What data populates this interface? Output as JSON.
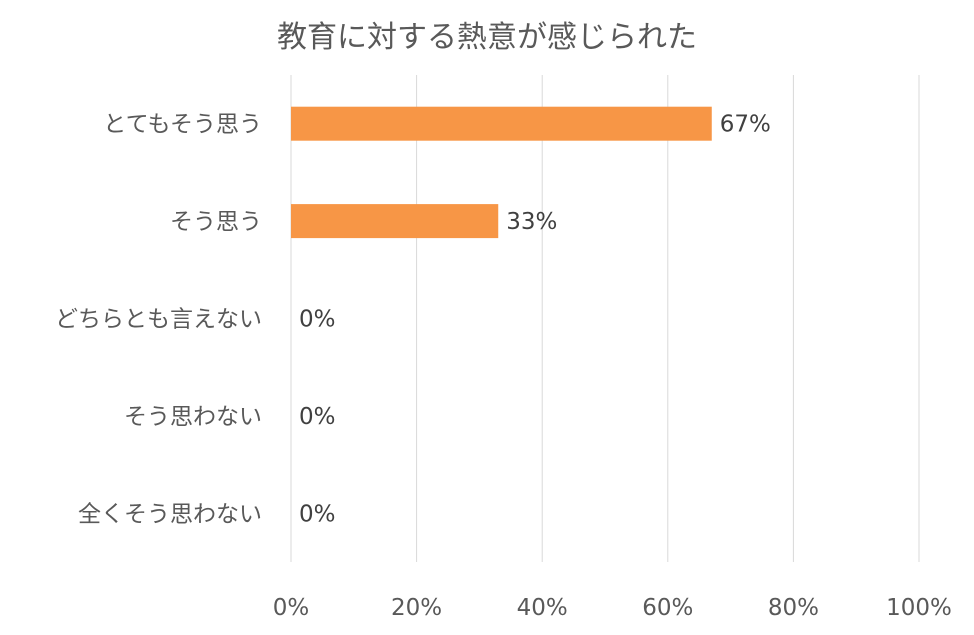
{
  "chart_data": {
    "type": "bar",
    "orientation": "horizontal",
    "title": "教育に対する熱意が感じられた",
    "categories": [
      "とてもそう思う",
      "そう思う",
      "どちらとも言えない",
      "そう思わない",
      "全くそう思わない"
    ],
    "values": [
      67,
      33,
      0,
      0,
      0
    ],
    "data_labels": [
      "67%",
      "33%",
      "0%",
      "0%",
      "0%"
    ],
    "xlim": [
      0,
      100
    ],
    "xticks": [
      0,
      20,
      40,
      60,
      80,
      100
    ],
    "xtick_labels": [
      "0%",
      "20%",
      "40%",
      "60%",
      "80%",
      "100%"
    ],
    "grid": true,
    "legend": "none",
    "bar_color": "#f79646"
  }
}
